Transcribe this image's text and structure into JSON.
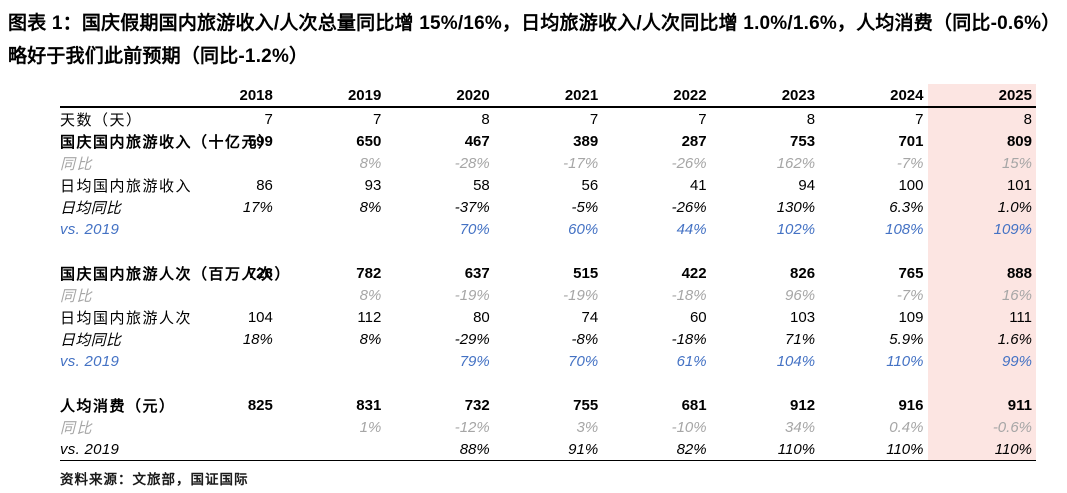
{
  "figure": {
    "title": "图表 1：国庆假期国内旅游收入/人次总量同比增 15%/16%，日均旅游收入/人次同比增 1.0%/1.6%，人均消费（同比-0.6%）略好于我们此前预期（同比-1.2%）",
    "source": "资料来源：文旅部，国证国际"
  },
  "colors": {
    "highlight_column_bg": "#fce5e2",
    "vs2019_blue": "#4472c4",
    "yoy_gray": "#a6a6a6",
    "rule_black": "#000000"
  },
  "table": {
    "columns": [
      "2018",
      "2019",
      "2020",
      "2021",
      "2022",
      "2023",
      "2024",
      "2025"
    ],
    "highlight_column": "2025",
    "rows": [
      {
        "label": "天数（天）",
        "style": "plain",
        "values": [
          "7",
          "7",
          "8",
          "7",
          "7",
          "8",
          "7",
          "8"
        ]
      },
      {
        "label": "国庆国内旅游收入（十亿元）",
        "style": "bold",
        "values": [
          "599",
          "650",
          "467",
          "389",
          "287",
          "753",
          "701",
          "809"
        ]
      },
      {
        "label": "同比",
        "style": "gray",
        "values": [
          "",
          "8%",
          "-28%",
          "-17%",
          "-26%",
          "162%",
          "-7%",
          "15%"
        ]
      },
      {
        "label": "日均国内旅游收入",
        "style": "plain",
        "values": [
          "86",
          "93",
          "58",
          "56",
          "41",
          "94",
          "100",
          "101"
        ]
      },
      {
        "label": "日均同比",
        "style": "italic",
        "values": [
          "17%",
          "8%",
          "-37%",
          "-5%",
          "-26%",
          "130%",
          "6.3%",
          "1.0%"
        ]
      },
      {
        "label": "vs. 2019",
        "style": "blue",
        "values": [
          "",
          "",
          "70%",
          "60%",
          "44%",
          "102%",
          "108%",
          "109%"
        ]
      },
      {
        "label": "",
        "style": "spacer",
        "values": [
          "",
          "",
          "",
          "",
          "",
          "",
          "",
          ""
        ]
      },
      {
        "label": "国庆国内旅游人次（百万人次）",
        "style": "bold",
        "values": [
          "726",
          "782",
          "637",
          "515",
          "422",
          "826",
          "765",
          "888"
        ]
      },
      {
        "label": "同比",
        "style": "gray",
        "values": [
          "",
          "8%",
          "-19%",
          "-19%",
          "-18%",
          "96%",
          "-7%",
          "16%"
        ]
      },
      {
        "label": "日均国内旅游人次",
        "style": "plain",
        "values": [
          "104",
          "112",
          "80",
          "74",
          "60",
          "103",
          "109",
          "111"
        ]
      },
      {
        "label": "日均同比",
        "style": "italic",
        "values": [
          "18%",
          "8%",
          "-29%",
          "-8%",
          "-18%",
          "71%",
          "5.9%",
          "1.6%"
        ]
      },
      {
        "label": "vs. 2019",
        "style": "blue",
        "values": [
          "",
          "",
          "79%",
          "70%",
          "61%",
          "104%",
          "110%",
          "99%"
        ]
      },
      {
        "label": "",
        "style": "spacer",
        "values": [
          "",
          "",
          "",
          "",
          "",
          "",
          "",
          ""
        ]
      },
      {
        "label": "人均消费（元）",
        "style": "bold",
        "values": [
          "825",
          "831",
          "732",
          "755",
          "681",
          "912",
          "916",
          "911"
        ]
      },
      {
        "label": "同比",
        "style": "gray",
        "values": [
          "",
          "1%",
          "-12%",
          "3%",
          "-10%",
          "34%",
          "0.4%",
          "-0.6%"
        ]
      },
      {
        "label": "vs. 2019",
        "style": "italic",
        "values": [
          "",
          "",
          "88%",
          "91%",
          "82%",
          "110%",
          "110%",
          "110%"
        ]
      }
    ]
  }
}
